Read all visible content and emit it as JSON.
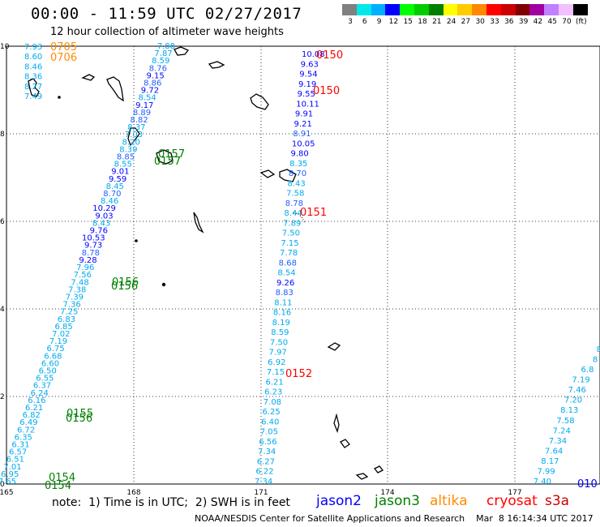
{
  "header": {
    "title": "00:00 - 11:59 UTC 02/27/2017",
    "subtitle": "12 hour collection of altimeter wave heights"
  },
  "colorbar": {
    "colors": [
      "#808080",
      "#00e8e8",
      "#00b0ff",
      "#0000ff",
      "#00ff00",
      "#00cc00",
      "#008000",
      "#ffff00",
      "#ffcc00",
      "#ff8800",
      "#ff0000",
      "#cc0000",
      "#800000",
      "#a000a0",
      "#c080ff",
      "#f0c0ff",
      "#000000"
    ],
    "labels": [
      "3",
      "6",
      "9",
      "12",
      "15",
      "18",
      "21",
      "24",
      "27",
      "30",
      "33",
      "36",
      "39",
      "42",
      "45",
      "70",
      "(ft)"
    ]
  },
  "axes": {
    "y_ticks": [
      "10",
      "8",
      "6",
      "4",
      "2",
      "0"
    ],
    "x_ticks": [
      "165",
      "168",
      "171",
      "174",
      "177"
    ]
  },
  "passes": [
    {
      "track": "jason2",
      "values": [
        "7.88",
        "7.87",
        "8.59",
        "8.76",
        "9.15",
        "8.86",
        "9.72",
        "8.54",
        "9.17",
        "8.89",
        "8.82",
        "8.37",
        "7.03",
        "8.20",
        "8.39",
        "8.85",
        "8.55",
        "9.01",
        "9.59",
        "8.45",
        "8.70",
        "8.46",
        "10.29",
        "9.03",
        "8.43",
        "9.76",
        "10.53",
        "9.73",
        "8.78",
        "9.28",
        "7.96",
        "7.56",
        "7.48",
        "7.38",
        "7.39",
        "7.36",
        "7.25",
        "6.83",
        "6.85",
        "7.02",
        "7.19",
        "6.75",
        "6.68",
        "6.60",
        "6.50",
        "6.55",
        "6.37",
        "6.24",
        "6.16",
        "6.21",
        "6.82",
        "6.49",
        "6.72",
        "6.35",
        "6.31",
        "6.57",
        "6.51",
        "7.01",
        "6.95",
        "7.65"
      ]
    },
    {
      "track": "jason2-b",
      "values": [
        "10.08",
        "9.63",
        "9.54",
        "9.19",
        "9.55",
        "10.11",
        "9.91",
        "9.21",
        "8.91",
        "10.05",
        "9.80",
        "8.35",
        "8.70",
        "8.43",
        "7.58",
        "8.78",
        "8.44",
        "7.89",
        "7.50",
        "7.15",
        "7.78",
        "8.68",
        "8.54",
        "9.26",
        "8.83",
        "8.11",
        "8.16",
        "8.19",
        "8.59",
        "7.50",
        "7.97",
        "6.92",
        "7.15",
        "6.21",
        "6.23",
        "7.08",
        "6.25",
        "6.40",
        "7.05",
        "6.56",
        "7.34",
        "6.27",
        "6.22",
        "7.34"
      ]
    },
    {
      "track": "tl",
      "values": [
        "7.93",
        "8.60",
        "8.46",
        "8.36",
        "8.27",
        "7.49"
      ]
    },
    {
      "track": "right",
      "values": [
        "8",
        "8",
        "6.8",
        "7.19",
        "7.46",
        "7.20",
        "8.13",
        "7.58",
        "7.24",
        "7.34",
        "7.64",
        "8.17",
        "7.99",
        "7.40"
      ]
    }
  ],
  "time_labels": [
    {
      "text": "0705",
      "color": "#ff8c00"
    },
    {
      "text": "0706",
      "color": "#ff8c00"
    },
    {
      "text": "0150",
      "color": "#ff0000"
    },
    {
      "text": "0150",
      "color": "#ff0000"
    },
    {
      "text": "0157",
      "color": "#008000"
    },
    {
      "text": "0157",
      "color": "#008000"
    },
    {
      "text": "0151",
      "color": "#ff0000"
    },
    {
      "text": "0156",
      "color": "#008000"
    },
    {
      "text": "0156",
      "color": "#008000"
    },
    {
      "text": "0152",
      "color": "#ff0000"
    },
    {
      "text": "0155",
      "color": "#008000"
    },
    {
      "text": "0156",
      "color": "#008000"
    },
    {
      "text": "0154",
      "color": "#008000"
    },
    {
      "text": "0154",
      "color": "#008000"
    },
    {
      "text": "010",
      "color": "#0000ff"
    }
  ],
  "footer": {
    "note": "note:  1) Time is in UTC;  2) SWH is in feet",
    "satellites": [
      {
        "name": "jason2",
        "color": "#0000ff"
      },
      {
        "name": "jason3",
        "color": "#008000"
      },
      {
        "name": "altika",
        "color": "#ff8c00"
      },
      {
        "name": "cryosat",
        "color": "#ff0000"
      },
      {
        "name": "s3a",
        "color": "#cc0000"
      }
    ],
    "credit": "NOAA/NESDIS Center for Satellite Applications and Research    Mar  8 16:14:34 UTC 2017"
  }
}
